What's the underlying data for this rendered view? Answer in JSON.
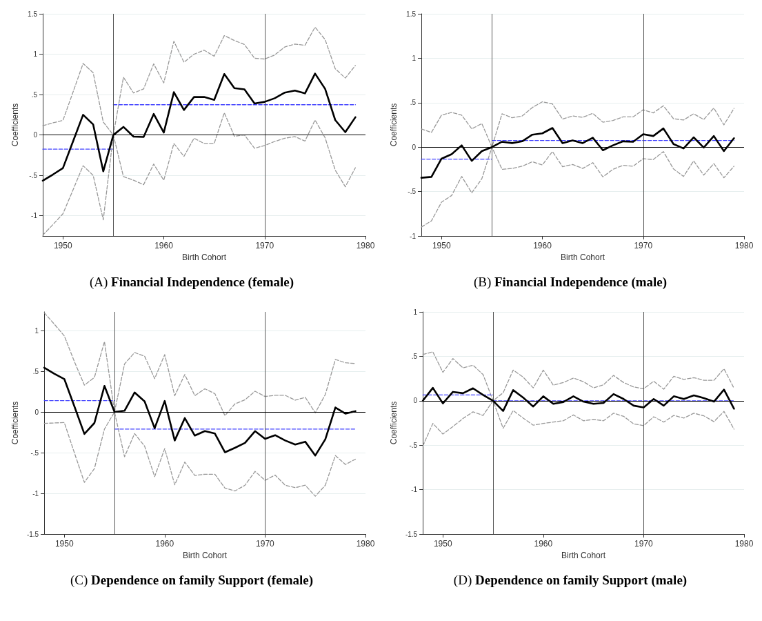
{
  "chart_data": [
    {
      "type": "line",
      "title": "(A) Financial Independence (female)",
      "xlabel": "Birth Cohort",
      "ylabel": "Coefficients",
      "x": [
        1948,
        1949,
        1950,
        1951,
        1952,
        1953,
        1954,
        1955,
        1956,
        1957,
        1958,
        1959,
        1960,
        1961,
        1962,
        1963,
        1964,
        1965,
        1966,
        1967,
        1968,
        1969,
        1970,
        1971,
        1972,
        1973,
        1974,
        1975,
        1976,
        1977,
        1978,
        1979
      ],
      "xlim": [
        1948,
        1980
      ],
      "xticks": [
        1950,
        1960,
        1970,
        1980
      ],
      "ylim": [
        -1.25,
        1.5
      ],
      "yticks": [
        {
          "value": -1,
          "label": "-1"
        },
        {
          "value": -0.5,
          "label": "-.5"
        },
        0,
        {
          "value": 0.5,
          "label": ".5"
        },
        1,
        1.5
      ],
      "grid": "y",
      "marker": "none",
      "series": [
        {
          "color": "#000000",
          "line_style": "solid",
          "values": [
            -0.565,
            -0.49,
            -0.41,
            -0.08,
            0.25,
            0.13,
            -0.45,
            0,
            0.1,
            -0.02,
            -0.025,
            0.26,
            0.03,
            0.53,
            0.31,
            0.47,
            0.47,
            0.435,
            0.755,
            0.58,
            0.565,
            0.39,
            0.41,
            0.455,
            0.525,
            0.55,
            0.515,
            0.76,
            0.57,
            0.185,
            0.035,
            0.22
          ]
        },
        {
          "color": "#999999",
          "line_style": "dashed",
          "values": [
            0.115,
            0.15,
            0.18,
            0.53,
            0.885,
            0.77,
            0.16,
            0,
            0.715,
            0.52,
            0.57,
            0.88,
            0.645,
            1.16,
            0.9,
            1.0,
            1.05,
            0.975,
            1.23,
            1.17,
            1.12,
            0.95,
            0.94,
            0.99,
            1.09,
            1.125,
            1.11,
            1.335,
            1.18,
            0.82,
            0.705,
            0.86
          ]
        },
        {
          "color": "#999999",
          "line_style": "dashed",
          "values": [
            -1.24,
            -1.11,
            -0.975,
            -0.68,
            -0.38,
            -0.5,
            -1.05,
            0,
            -0.515,
            -0.56,
            -0.615,
            -0.36,
            -0.56,
            -0.105,
            -0.265,
            -0.04,
            -0.105,
            -0.105,
            0.275,
            -0.015,
            0,
            -0.165,
            -0.13,
            -0.08,
            -0.04,
            -0.02,
            -0.075,
            0.185,
            -0.035,
            -0.435,
            -0.64,
            -0.405
          ]
        },
        {
          "color": "#4040ff",
          "line_style": "dashed",
          "x": [
            1948,
            1955
          ],
          "values": [
            -0.175,
            -0.175
          ]
        },
        {
          "color": "#4040ff",
          "line_style": "dashed",
          "x": [
            1955,
            1979
          ],
          "values": [
            0.375,
            0.375
          ]
        }
      ],
      "ref_lines": [
        {
          "axis": "x",
          "value": 1955,
          "color": "#555555"
        },
        {
          "axis": "x",
          "value": 1970,
          "color": "#555555"
        },
        {
          "axis": "y",
          "value": 0,
          "color": "#000000"
        }
      ]
    },
    {
      "type": "line",
      "title": "(B) Financial Independence (male)",
      "xlabel": "Birth Cohort",
      "ylabel": "Coefficients",
      "x": [
        1948,
        1949,
        1950,
        1951,
        1952,
        1953,
        1954,
        1955,
        1956,
        1957,
        1958,
        1959,
        1960,
        1961,
        1962,
        1963,
        1964,
        1965,
        1966,
        1967,
        1968,
        1969,
        1970,
        1971,
        1972,
        1973,
        1974,
        1975,
        1976,
        1977,
        1978,
        1979
      ],
      "xlim": [
        1948,
        1980
      ],
      "xticks": [
        1950,
        1960,
        1970,
        1980
      ],
      "ylim": [
        -1,
        1.5
      ],
      "yticks": [
        {
          "value": -1,
          "label": "-1"
        },
        {
          "value": -0.5,
          "label": "-.5"
        },
        0,
        {
          "value": 0.5,
          "label": ".5"
        },
        1,
        1.5
      ],
      "grid": "y",
      "marker": "none",
      "series": [
        {
          "color": "#000000",
          "line_style": "solid",
          "values": [
            -0.345,
            -0.335,
            -0.13,
            -0.08,
            0.02,
            -0.155,
            -0.045,
            0,
            0.06,
            0.045,
            0.065,
            0.14,
            0.155,
            0.215,
            0.045,
            0.075,
            0.045,
            0.105,
            -0.035,
            0.02,
            0.065,
            0.06,
            0.145,
            0.125,
            0.21,
            0.035,
            -0.015,
            0.11,
            -0.005,
            0.125,
            -0.045,
            0.1
          ]
        },
        {
          "color": "#999999",
          "line_style": "dashed",
          "values": [
            0.205,
            0.165,
            0.36,
            0.39,
            0.36,
            0.205,
            0.265,
            0,
            0.375,
            0.33,
            0.35,
            0.445,
            0.51,
            0.485,
            0.315,
            0.35,
            0.335,
            0.38,
            0.28,
            0.3,
            0.34,
            0.34,
            0.42,
            0.385,
            0.465,
            0.32,
            0.305,
            0.375,
            0.31,
            0.44,
            0.25,
            0.435
          ]
        },
        {
          "color": "#999999",
          "line_style": "dashed",
          "values": [
            -0.9,
            -0.83,
            -0.62,
            -0.545,
            -0.33,
            -0.515,
            -0.355,
            0,
            -0.25,
            -0.24,
            -0.215,
            -0.165,
            -0.2,
            -0.05,
            -0.22,
            -0.195,
            -0.24,
            -0.175,
            -0.335,
            -0.25,
            -0.205,
            -0.215,
            -0.13,
            -0.14,
            -0.05,
            -0.245,
            -0.33,
            -0.155,
            -0.315,
            -0.185,
            -0.345,
            -0.215
          ]
        },
        {
          "color": "#4040ff",
          "line_style": "dashed",
          "x": [
            1948,
            1955
          ],
          "values": [
            -0.135,
            -0.135
          ]
        },
        {
          "color": "#4040ff",
          "line_style": "dashed",
          "x": [
            1955,
            1979
          ],
          "values": [
            0.075,
            0.075
          ]
        }
      ],
      "ref_lines": [
        {
          "axis": "x",
          "value": 1955,
          "color": "#555555"
        },
        {
          "axis": "x",
          "value": 1970,
          "color": "#555555"
        },
        {
          "axis": "y",
          "value": 0,
          "color": "#000000"
        }
      ]
    },
    {
      "type": "line",
      "title": "(C) Dependence on family Support (female)",
      "xlabel": "Birth Cohort",
      "ylabel": "Coefficients",
      "x": [
        1948,
        1949,
        1950,
        1951,
        1952,
        1953,
        1954,
        1955,
        1956,
        1957,
        1958,
        1959,
        1960,
        1961,
        1962,
        1963,
        1964,
        1965,
        1966,
        1967,
        1968,
        1969,
        1970,
        1971,
        1972,
        1973,
        1974,
        1975,
        1976,
        1977,
        1978,
        1979
      ],
      "xlim": [
        1948,
        1980
      ],
      "xticks": [
        1950,
        1960,
        1970,
        1980
      ],
      "ylim": [
        -1.5,
        1.23
      ],
      "yticks": [
        {
          "value": -1.5,
          "label": "-1.5"
        },
        {
          "value": -1,
          "label": "-1"
        },
        {
          "value": -0.5,
          "label": "-.5"
        },
        0,
        {
          "value": 0.5,
          "label": ".5"
        },
        1
      ],
      "grid": "y",
      "marker": "none",
      "series": [
        {
          "color": "#000000",
          "line_style": "solid",
          "values": [
            0.545,
            0.47,
            0.405,
            0.07,
            -0.27,
            -0.135,
            0.32,
            0,
            0.015,
            0.24,
            0.13,
            -0.2,
            0.135,
            -0.35,
            -0.075,
            -0.29,
            -0.235,
            -0.265,
            -0.495,
            -0.44,
            -0.38,
            -0.235,
            -0.33,
            -0.285,
            -0.35,
            -0.4,
            -0.365,
            -0.535,
            -0.335,
            0.055,
            -0.02,
            0.01
          ]
        },
        {
          "color": "#999999",
          "line_style": "dashed",
          "values": [
            1.22,
            1.08,
            0.935,
            0.62,
            0.33,
            0.425,
            0.865,
            0,
            0.59,
            0.73,
            0.685,
            0.41,
            0.705,
            0.2,
            0.46,
            0.2,
            0.285,
            0.225,
            -0.045,
            0.1,
            0.15,
            0.255,
            0.19,
            0.205,
            0.205,
            0.145,
            0.18,
            -0.01,
            0.215,
            0.645,
            0.605,
            0.595
          ]
        },
        {
          "color": "#999999",
          "line_style": "dashed",
          "values": [
            -0.14,
            -0.135,
            -0.13,
            -0.5,
            -0.865,
            -0.695,
            -0.21,
            0,
            -0.55,
            -0.265,
            -0.42,
            -0.795,
            -0.45,
            -0.895,
            -0.615,
            -0.78,
            -0.765,
            -0.765,
            -0.935,
            -0.97,
            -0.9,
            -0.73,
            -0.84,
            -0.775,
            -0.9,
            -0.93,
            -0.9,
            -1.035,
            -0.9,
            -0.535,
            -0.645,
            -0.58
          ]
        },
        {
          "color": "#4040ff",
          "line_style": "dashed",
          "x": [
            1948,
            1955
          ],
          "values": [
            0.14,
            0.14
          ]
        },
        {
          "color": "#4040ff",
          "line_style": "dashed",
          "x": [
            1955,
            1979
          ],
          "values": [
            -0.21,
            -0.21
          ]
        }
      ],
      "ref_lines": [
        {
          "axis": "x",
          "value": 1955,
          "color": "#555555"
        },
        {
          "axis": "x",
          "value": 1970,
          "color": "#555555"
        },
        {
          "axis": "y",
          "value": 0,
          "color": "#000000"
        }
      ]
    },
    {
      "type": "line",
      "title": "(D) Dependence on family Support (male)",
      "xlabel": "Birth Cohort",
      "ylabel": "Coefficients",
      "x": [
        1948,
        1949,
        1950,
        1951,
        1952,
        1953,
        1954,
        1955,
        1956,
        1957,
        1958,
        1959,
        1960,
        1961,
        1962,
        1963,
        1964,
        1965,
        1966,
        1967,
        1968,
        1969,
        1970,
        1971,
        1972,
        1973,
        1974,
        1975,
        1976,
        1977,
        1978,
        1979
      ],
      "xlim": [
        1948,
        1980
      ],
      "xticks": [
        1950,
        1960,
        1970,
        1980
      ],
      "ylim": [
        -1.5,
        1
      ],
      "yticks": [
        {
          "value": -1.5,
          "label": "-1.5"
        },
        {
          "value": -1,
          "label": "-1"
        },
        {
          "value": -0.5,
          "label": "-.5"
        },
        0,
        {
          "value": 0.5,
          "label": ".5"
        },
        1
      ],
      "grid": "y",
      "marker": "none",
      "series": [
        {
          "color": "#000000",
          "line_style": "solid",
          "values": [
            0,
            0.145,
            -0.03,
            0.1,
            0.085,
            0.14,
            0.065,
            0,
            -0.115,
            0.12,
            0.035,
            -0.065,
            0.05,
            -0.035,
            -0.015,
            0.05,
            -0.01,
            -0.035,
            -0.025,
            0.075,
            0.02,
            -0.055,
            -0.075,
            0.02,
            -0.055,
            0.05,
            0.02,
            0.06,
            0.03,
            -0.01,
            0.125,
            -0.09
          ]
        },
        {
          "color": "#999999",
          "line_style": "dashed",
          "values": [
            0.52,
            0.55,
            0.32,
            0.475,
            0.37,
            0.4,
            0.295,
            0,
            0.09,
            0.345,
            0.265,
            0.145,
            0.345,
            0.175,
            0.205,
            0.255,
            0.215,
            0.145,
            0.18,
            0.285,
            0.205,
            0.155,
            0.135,
            0.22,
            0.13,
            0.275,
            0.24,
            0.26,
            0.23,
            0.23,
            0.36,
            0.14
          ]
        },
        {
          "color": "#999999",
          "line_style": "dashed",
          "values": [
            -0.51,
            -0.255,
            -0.375,
            -0.29,
            -0.2,
            -0.125,
            -0.165,
            0,
            -0.31,
            -0.11,
            -0.195,
            -0.275,
            -0.255,
            -0.24,
            -0.225,
            -0.16,
            -0.225,
            -0.21,
            -0.225,
            -0.14,
            -0.175,
            -0.26,
            -0.28,
            -0.18,
            -0.24,
            -0.165,
            -0.195,
            -0.14,
            -0.17,
            -0.235,
            -0.12,
            -0.32
          ]
        },
        {
          "color": "#4040ff",
          "line_style": "dashed",
          "x": [
            1948,
            1955
          ],
          "values": [
            0.065,
            0.065
          ]
        },
        {
          "color": "#4040ff",
          "line_style": "dashed",
          "x": [
            1955,
            1979
          ],
          "values": [
            0,
            0
          ]
        }
      ],
      "ref_lines": [
        {
          "axis": "x",
          "value": 1955,
          "color": "#555555"
        },
        {
          "axis": "x",
          "value": 1970,
          "color": "#555555"
        },
        {
          "axis": "y",
          "value": 0,
          "color": "#000000"
        }
      ]
    }
  ]
}
